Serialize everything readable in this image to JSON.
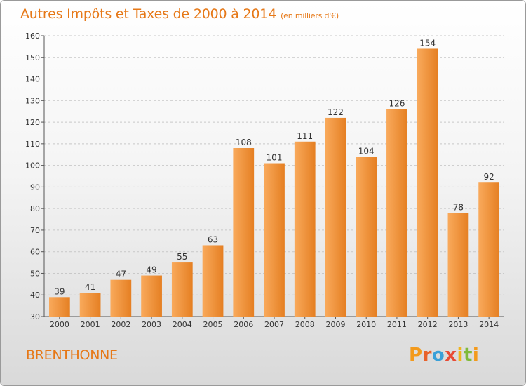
{
  "title": "Autres Impôts et Taxes de 2000 à 2014",
  "title_unit": "(en milliers d'€)",
  "place_name": "BRENTHONNE",
  "logo": {
    "letters": [
      "P",
      "r",
      "o",
      "x",
      "i",
      "t",
      "i"
    ],
    "colors": [
      "#f39a1c",
      "#e8622b",
      "#3aa0d8",
      "#e84b35",
      "#f2b41a",
      "#7fba3a",
      "#f39a1c"
    ]
  },
  "colors": {
    "accent": "#e67817",
    "bar_light": "#f9aa5c",
    "bar_dark": "#e57f22"
  },
  "chart_data": {
    "type": "bar",
    "categories": [
      "2000",
      "2001",
      "2002",
      "2003",
      "2004",
      "2005",
      "2006",
      "2007",
      "2008",
      "2009",
      "2010",
      "2011",
      "2012",
      "2013",
      "2014"
    ],
    "values": [
      39,
      41,
      47,
      49,
      55,
      63,
      108,
      101,
      111,
      122,
      104,
      126,
      154,
      78,
      92
    ],
    "ylim": [
      30,
      160
    ],
    "yticks": [
      30,
      40,
      50,
      60,
      70,
      80,
      90,
      100,
      110,
      120,
      130,
      140,
      150,
      160
    ],
    "grid": "horizontal-dashed",
    "legend": "none"
  }
}
